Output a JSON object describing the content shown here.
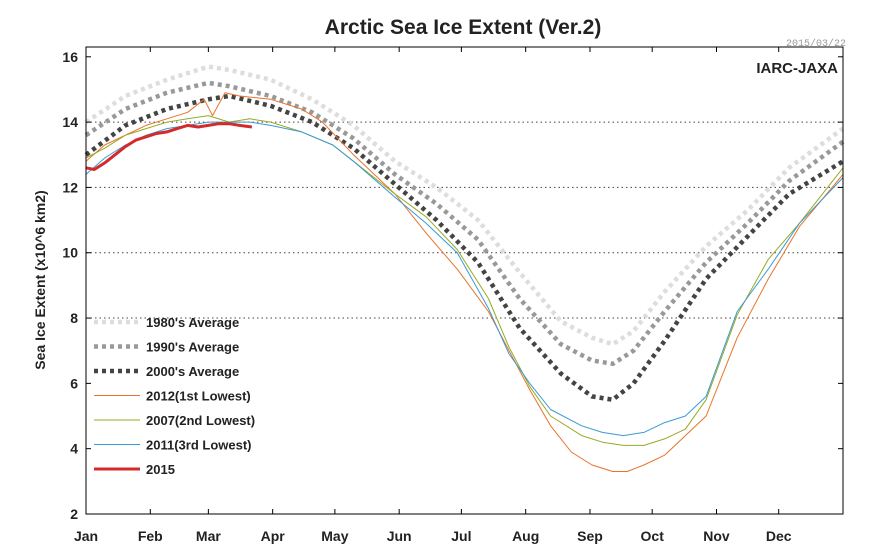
{
  "chart_data": {
    "type": "line",
    "title": "Arctic Sea Ice Extent (Ver.2)",
    "ylabel": "Sea Ice Extent (x10^6 km2)",
    "xlabel": "",
    "brand": "IARC-JAXA",
    "date_stamp": "2015/03/22",
    "ylim": [
      2,
      16.3
    ],
    "yticks": [
      2,
      4,
      6,
      8,
      10,
      12,
      14,
      16
    ],
    "months": [
      "Jan",
      "Feb",
      "Mar",
      "Apr",
      "May",
      "Jun",
      "Jul",
      "Aug",
      "Sep",
      "Oct",
      "Nov",
      "Dec"
    ],
    "x_unit": "day of year",
    "x_range": [
      1,
      366
    ],
    "grid": "horizontal dotted at 8, 10, 12, 14",
    "legend_position": "bottom-left",
    "series": [
      {
        "name": "1980's Average",
        "color": "#dddddd",
        "style": "dotted",
        "x": [
          1,
          20,
          40,
          60,
          70,
          90,
          110,
          130,
          150,
          170,
          190,
          210,
          230,
          245,
          255,
          265,
          280,
          300,
          320,
          340,
          366
        ],
        "y": [
          14.0,
          14.8,
          15.3,
          15.7,
          15.6,
          15.3,
          14.7,
          13.9,
          12.8,
          12.0,
          11.0,
          9.4,
          7.9,
          7.4,
          7.2,
          7.6,
          8.8,
          10.2,
          11.3,
          12.6,
          13.8
        ]
      },
      {
        "name": "1990's Average",
        "color": "#999999",
        "style": "dotted",
        "x": [
          1,
          20,
          40,
          60,
          70,
          90,
          110,
          130,
          150,
          170,
          190,
          210,
          230,
          245,
          255,
          265,
          280,
          300,
          320,
          340,
          366
        ],
        "y": [
          13.6,
          14.4,
          14.9,
          15.2,
          15.1,
          14.8,
          14.3,
          13.5,
          12.4,
          11.5,
          10.4,
          8.6,
          7.2,
          6.7,
          6.6,
          7.0,
          8.2,
          9.7,
          10.9,
          12.2,
          13.4
        ]
      },
      {
        "name": "2000's Average",
        "color": "#444444",
        "style": "dotted",
        "x": [
          1,
          20,
          40,
          60,
          70,
          90,
          110,
          130,
          150,
          170,
          190,
          210,
          230,
          245,
          255,
          265,
          280,
          300,
          320,
          340,
          366
        ],
        "y": [
          13.0,
          13.9,
          14.4,
          14.7,
          14.8,
          14.5,
          14.0,
          13.2,
          12.1,
          11.0,
          9.7,
          7.7,
          6.3,
          5.6,
          5.5,
          6.0,
          7.3,
          9.2,
          10.5,
          11.8,
          12.8
        ]
      },
      {
        "name": "2012(1st Lowest)",
        "color": "#e8732b",
        "style": "solid",
        "x": [
          1,
          10,
          20,
          30,
          40,
          50,
          58,
          62,
          68,
          75,
          90,
          105,
          115,
          130,
          150,
          165,
          180,
          195,
          205,
          215,
          225,
          235,
          245,
          255,
          262,
          270,
          280,
          290,
          300,
          315,
          330,
          345,
          366
        ],
        "y": [
          12.8,
          13.3,
          13.6,
          13.9,
          14.1,
          14.3,
          14.7,
          14.2,
          14.9,
          14.8,
          14.7,
          14.4,
          14.0,
          13.0,
          11.8,
          10.6,
          9.5,
          8.2,
          7.0,
          5.8,
          4.7,
          3.9,
          3.5,
          3.3,
          3.3,
          3.5,
          3.8,
          4.4,
          5.0,
          7.4,
          9.2,
          10.8,
          12.4
        ]
      },
      {
        "name": "2007(2nd Lowest)",
        "color": "#99aa22",
        "style": "solid",
        "x": [
          1,
          10,
          20,
          30,
          40,
          50,
          60,
          70,
          80,
          90,
          105,
          120,
          130,
          150,
          165,
          180,
          195,
          205,
          215,
          225,
          240,
          250,
          260,
          270,
          280,
          290,
          300,
          315,
          330,
          345,
          366
        ],
        "y": [
          12.9,
          13.2,
          13.6,
          13.8,
          14.0,
          14.1,
          14.2,
          14.0,
          14.1,
          14.0,
          13.7,
          13.3,
          12.8,
          11.8,
          11.1,
          10.1,
          8.6,
          7.1,
          5.9,
          5.0,
          4.4,
          4.2,
          4.1,
          4.1,
          4.3,
          4.6,
          5.5,
          8.1,
          9.8,
          10.9,
          12.6
        ]
      },
      {
        "name": "2011(3rd Lowest)",
        "color": "#3a9ad6",
        "style": "solid",
        "x": [
          1,
          10,
          20,
          30,
          40,
          50,
          60,
          70,
          80,
          90,
          105,
          120,
          130,
          150,
          165,
          180,
          195,
          205,
          215,
          225,
          240,
          250,
          260,
          270,
          280,
          290,
          300,
          315,
          330,
          345,
          366
        ],
        "y": [
          12.4,
          12.9,
          13.3,
          13.6,
          13.8,
          13.9,
          14.0,
          14.0,
          14.0,
          13.9,
          13.7,
          13.3,
          12.8,
          11.7,
          10.9,
          10.0,
          8.3,
          6.9,
          6.0,
          5.2,
          4.7,
          4.5,
          4.4,
          4.5,
          4.8,
          5.0,
          5.6,
          8.2,
          9.5,
          10.9,
          12.3
        ]
      },
      {
        "name": "2015",
        "color": "#d42a2a",
        "style": "solid-thick",
        "x": [
          1,
          5,
          10,
          15,
          20,
          25,
          30,
          35,
          40,
          45,
          50,
          55,
          60,
          65,
          70,
          75,
          81
        ],
        "y": [
          12.6,
          12.55,
          12.75,
          13.0,
          13.25,
          13.45,
          13.55,
          13.65,
          13.7,
          13.8,
          13.9,
          13.85,
          13.9,
          13.95,
          13.95,
          13.9,
          13.85
        ]
      }
    ]
  }
}
